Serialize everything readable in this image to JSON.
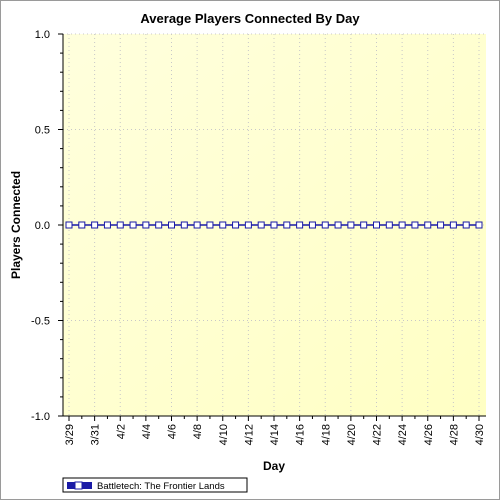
{
  "chart_data": {
    "type": "line",
    "title": "Average Players Connected By Day",
    "xlabel": "Day",
    "ylabel": "Players Connected",
    "ylim": [
      -1.0,
      1.0
    ],
    "yticks": [
      "1.0",
      "0.5",
      "0.0",
      "-0.5",
      "-1.0"
    ],
    "ytick_values": [
      1.0,
      0.5,
      0.0,
      -0.5,
      -1.0
    ],
    "x_tick_labels": [
      "3/29",
      "3/31",
      "4/2",
      "4/4",
      "4/6",
      "4/8",
      "4/10",
      "4/12",
      "4/14",
      "4/16",
      "4/18",
      "4/20",
      "4/22",
      "4/24",
      "4/26",
      "4/28",
      "4/30"
    ],
    "x": [
      "3/29",
      "3/30",
      "3/31",
      "4/1",
      "4/2",
      "4/3",
      "4/4",
      "4/5",
      "4/6",
      "4/7",
      "4/8",
      "4/9",
      "4/10",
      "4/11",
      "4/12",
      "4/13",
      "4/14",
      "4/15",
      "4/16",
      "4/17",
      "4/18",
      "4/19",
      "4/20",
      "4/21",
      "4/22",
      "4/23",
      "4/24",
      "4/25",
      "4/26",
      "4/27",
      "4/28",
      "4/29",
      "4/30"
    ],
    "series": [
      {
        "name": "Battletech: The Frontier Lands",
        "color": "#1a1aa6",
        "marker": "square",
        "values": [
          0,
          0,
          0,
          0,
          0,
          0,
          0,
          0,
          0,
          0,
          0,
          0,
          0,
          0,
          0,
          0,
          0,
          0,
          0,
          0,
          0,
          0,
          0,
          0,
          0,
          0,
          0,
          0,
          0,
          0,
          0,
          0,
          0
        ]
      }
    ],
    "grid": true,
    "legend_position": "bottom-left",
    "background_gradient": [
      "#ffffdd",
      "#ffffc4"
    ]
  }
}
